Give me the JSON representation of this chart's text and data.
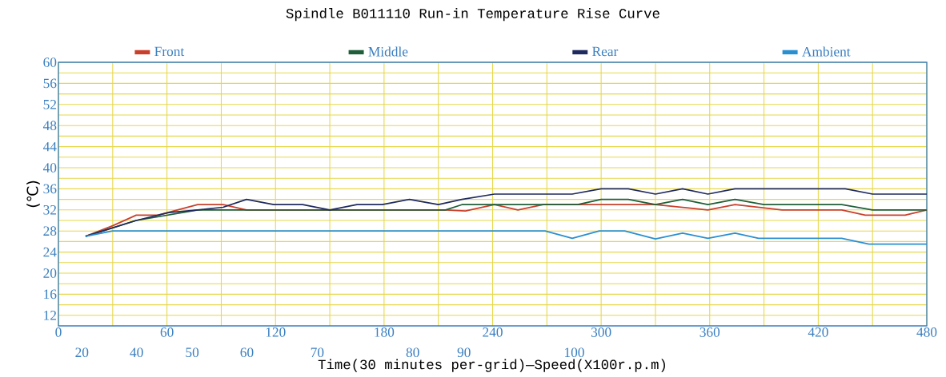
{
  "chart_data": {
    "type": "line",
    "title": "Spindle B011110 Run-in Temperature Rise Curve",
    "xlabel": "Time(30 minutes per-grid)—Speed(X100r.p.m)",
    "ylabel": "(℃)",
    "xlim": [
      0,
      480
    ],
    "xticks": [
      0,
      60,
      120,
      180,
      240,
      300,
      360,
      420,
      480
    ],
    "annotations": [
      "20",
      "40",
      "50",
      "60",
      "70",
      "80",
      "90",
      "100"
    ],
    "ylim": [
      10,
      60
    ],
    "yticks": [
      12,
      16,
      20,
      24,
      28,
      32,
      36,
      40,
      44,
      48,
      52,
      56,
      60
    ],
    "grid": true,
    "legend": "top",
    "series": [
      {
        "name": "Front",
        "color": "#c8402c",
        "x": [
          15,
          30,
          43,
          55,
          77,
          91,
          104,
          214,
          225,
          241,
          254,
          268,
          287,
          300,
          330,
          359,
          374,
          400,
          433,
          446,
          468,
          480
        ],
        "values": [
          27,
          29,
          31,
          31,
          33,
          33,
          32,
          32,
          31.8,
          33,
          32,
          33,
          33,
          33,
          33,
          32,
          33,
          32,
          32,
          31,
          31,
          32
        ]
      },
      {
        "name": "Middle",
        "color": "#1e5e3a",
        "x": [
          15,
          43,
          77,
          214,
          223,
          287,
          300,
          315,
          330,
          345,
          359,
          374,
          390,
          433,
          450,
          480
        ],
        "values": [
          27,
          30,
          32,
          32,
          33,
          33,
          34,
          34,
          33,
          34,
          33,
          34,
          33,
          33,
          32,
          32
        ]
      },
      {
        "name": "Rear",
        "color": "#1f2a5e",
        "x": [
          15,
          43,
          61,
          77,
          91,
          104,
          119,
          135,
          150,
          165,
          179,
          194,
          210,
          223,
          241,
          284,
          300,
          315,
          330,
          345,
          359,
          374,
          435,
          450,
          480
        ],
        "values": [
          27,
          30,
          31.5,
          32,
          32.5,
          34,
          33,
          33,
          32,
          33,
          33,
          34,
          33,
          34,
          35,
          35,
          36,
          36,
          35,
          36,
          35,
          36,
          36,
          35,
          35
        ]
      },
      {
        "name": "Ambient",
        "color": "#2a8fd0",
        "x": [
          15,
          30,
          269,
          284,
          299,
          313,
          330,
          345,
          359,
          374,
          387,
          433,
          448,
          480
        ],
        "values": [
          27,
          28,
          28,
          26.6,
          28,
          28,
          26.5,
          27.6,
          26.6,
          27.6,
          26.6,
          26.6,
          25.5,
          25.5
        ]
      }
    ]
  }
}
